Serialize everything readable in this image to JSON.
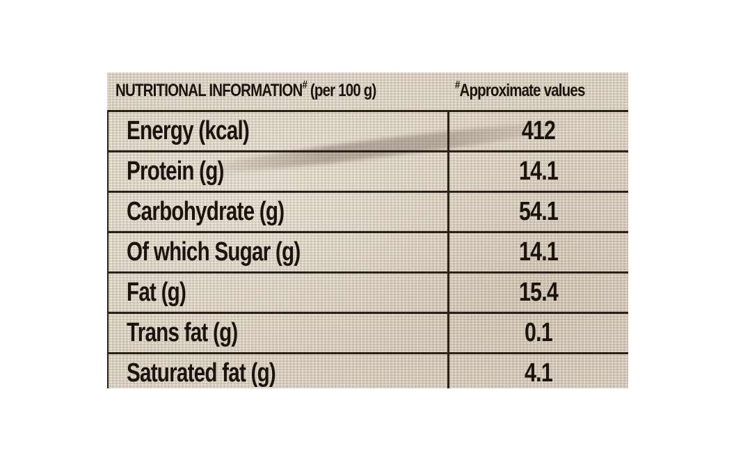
{
  "header": {
    "title": "NUTRITIONAL INFORMATION",
    "title_mark": "#",
    "title_suffix": " (per 100 g)",
    "note_mark": "#",
    "note": "Approximate values"
  },
  "rows": [
    {
      "name": "Energy (kcal)",
      "value": "412"
    },
    {
      "name": "Protein (g)",
      "value": "14.1"
    },
    {
      "name": "Carbohydrate (g)",
      "value": "54.1"
    },
    {
      "name": "Of which Sugar (g)",
      "value": "14.1"
    },
    {
      "name": "Fat (g)",
      "value": "15.4"
    },
    {
      "name": "Trans fat (g)",
      "value": "0.1"
    },
    {
      "name": "Saturated fat (g)",
      "value": "4.1"
    }
  ],
  "colors": {
    "text": "#1b140e",
    "lines": "#2a2018",
    "burlap": "#ddd2c2",
    "page": "#ffffff"
  }
}
